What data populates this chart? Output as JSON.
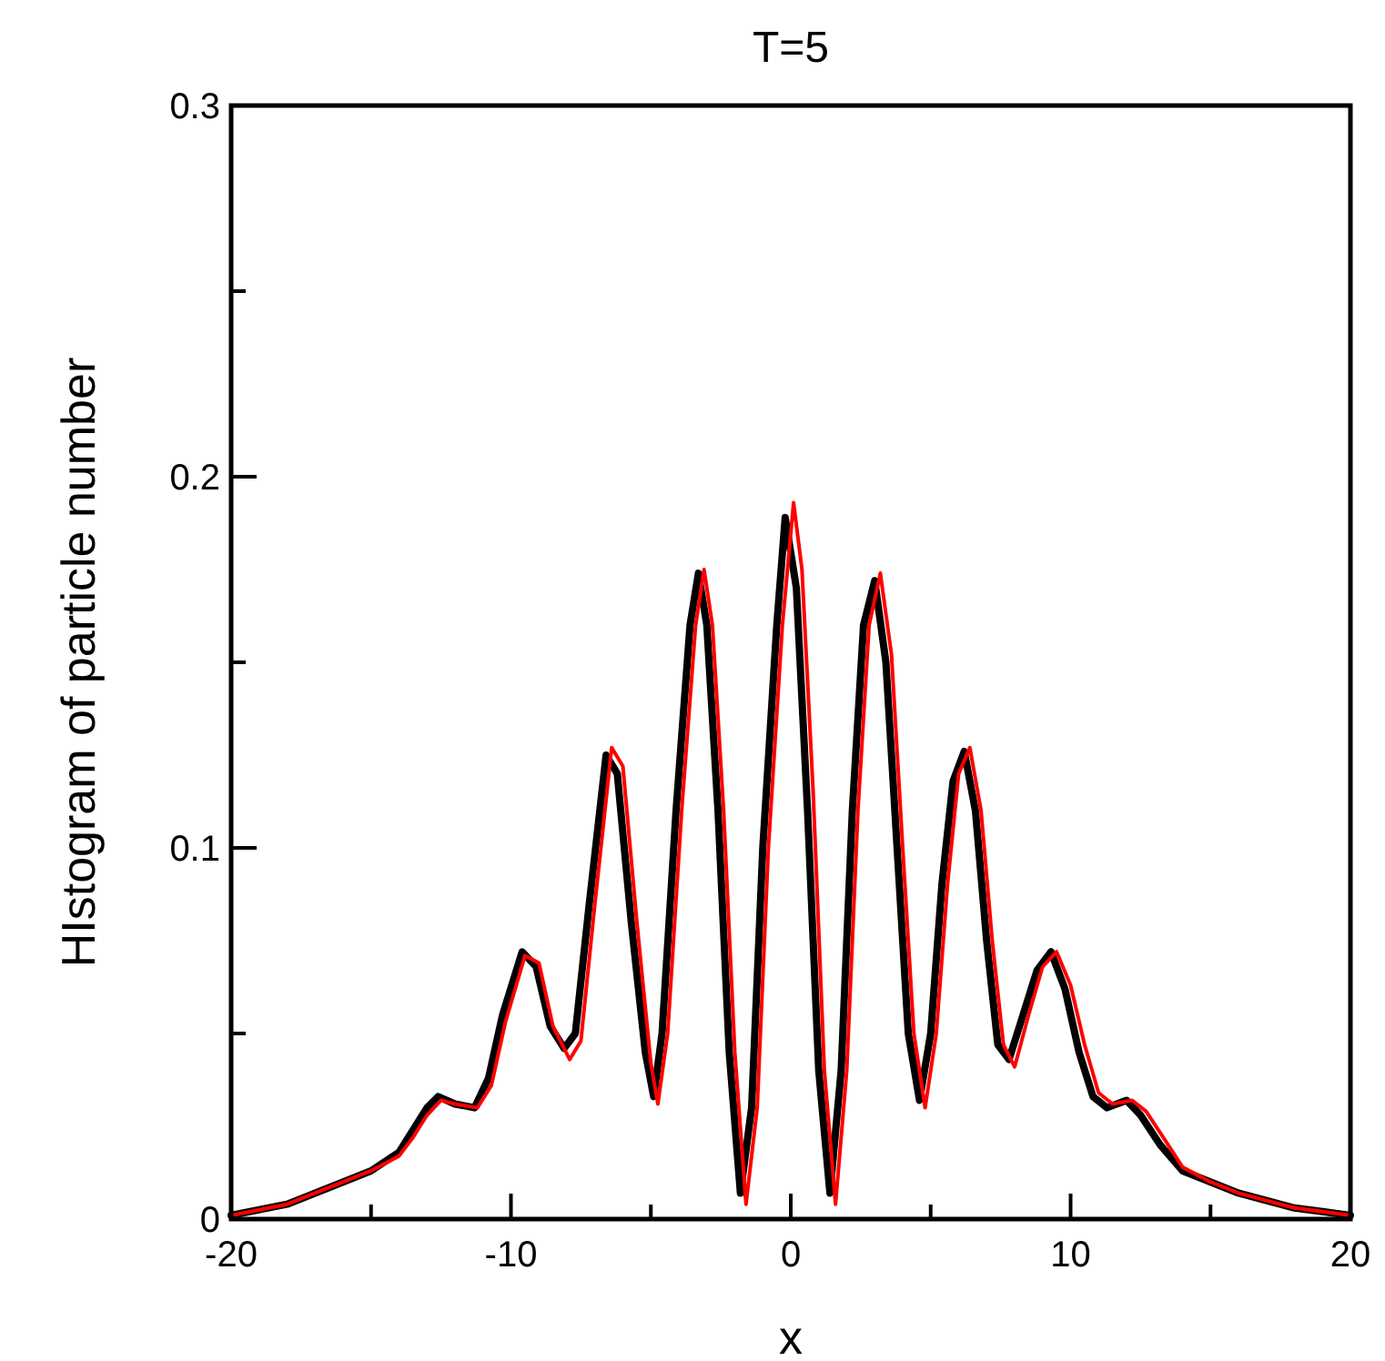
{
  "chart_data": {
    "type": "line",
    "title": "T=5",
    "xlabel": "x",
    "ylabel": "HIstogram of particle number",
    "xlim": [
      -20,
      20
    ],
    "ylim": [
      0,
      0.3
    ],
    "xticks": [
      -20,
      {
        "value": -15,
        "label": null
      },
      -10,
      {
        "value": -5,
        "label": null
      },
      0,
      {
        "value": 5,
        "label": null
      },
      10,
      {
        "value": 15,
        "label": null
      },
      20
    ],
    "yticks": [
      0,
      {
        "value": 0.05,
        "label": null
      },
      0.1,
      {
        "value": 0.15,
        "label": null
      },
      0.2,
      {
        "value": 0.25,
        "label": null
      },
      0.3
    ],
    "series": [
      {
        "color": "#000000",
        "x": [
          -20,
          -18,
          -17,
          -16,
          -15,
          -14,
          -13.5,
          -13,
          -12.6,
          -12,
          -11.3,
          -10.8,
          -10.3,
          -9.6,
          -9.1,
          -8.6,
          -8.1,
          -7.7,
          -7.2,
          -6.6,
          -6.2,
          -5.7,
          -5.2,
          -4.9,
          -4.6,
          -4.1,
          -3.6,
          -3.3,
          -3,
          -2.6,
          -2.2,
          -1.8,
          -1.4,
          -1,
          -0.5,
          -0.2,
          0.2,
          0.6,
          1,
          1.4,
          1.8,
          2.2,
          2.6,
          3,
          3.4,
          3.8,
          4.2,
          4.6,
          5,
          5.4,
          5.8,
          6.2,
          6.6,
          7,
          7.4,
          7.8,
          8.3,
          8.8,
          9.3,
          9.8,
          10.3,
          10.8,
          11.3,
          12,
          12.5,
          13.2,
          14,
          15,
          16,
          17,
          18,
          19,
          20
        ],
        "values": [
          0.001,
          0.004,
          0.007,
          0.01,
          0.013,
          0.018,
          0.024,
          0.03,
          0.033,
          0.031,
          0.03,
          0.038,
          0.055,
          0.072,
          0.068,
          0.052,
          0.046,
          0.05,
          0.085,
          0.125,
          0.12,
          0.08,
          0.045,
          0.033,
          0.05,
          0.11,
          0.16,
          0.174,
          0.16,
          0.11,
          0.045,
          0.007,
          0.03,
          0.1,
          0.16,
          0.189,
          0.17,
          0.11,
          0.04,
          0.007,
          0.04,
          0.11,
          0.16,
          0.172,
          0.15,
          0.1,
          0.05,
          0.032,
          0.05,
          0.09,
          0.118,
          0.126,
          0.11,
          0.075,
          0.047,
          0.043,
          0.055,
          0.067,
          0.072,
          0.062,
          0.045,
          0.033,
          0.03,
          0.032,
          0.028,
          0.02,
          0.013,
          0.01,
          0.007,
          0.005,
          0.003,
          0.002,
          0.001
        ]
      },
      {
        "color": "#ff0000",
        "x": [
          -20,
          -18,
          -17,
          -16,
          -15,
          -14,
          -13.5,
          -13,
          -12.5,
          -12,
          -11.2,
          -10.7,
          -10.2,
          -9.5,
          -9,
          -8.5,
          -7.9,
          -7.5,
          -7,
          -6.4,
          -6,
          -5.5,
          -5,
          -4.75,
          -4.4,
          -3.9,
          -3.4,
          -3.1,
          -2.8,
          -2.4,
          -2,
          -1.6,
          -1.2,
          -0.8,
          -0.3,
          0.1,
          0.4,
          0.8,
          1.2,
          1.6,
          2,
          2.4,
          2.8,
          3.2,
          3.6,
          4,
          4.4,
          4.8,
          5.2,
          5.6,
          6,
          6.4,
          6.8,
          7.2,
          7.6,
          8,
          8.5,
          9,
          9.5,
          10,
          10.5,
          11,
          11.5,
          12.2,
          12.7,
          13.4,
          14,
          15,
          16,
          17,
          18,
          19,
          20
        ],
        "values": [
          0.001,
          0.004,
          0.007,
          0.01,
          0.013,
          0.017,
          0.022,
          0.028,
          0.032,
          0.031,
          0.03,
          0.036,
          0.053,
          0.071,
          0.069,
          0.052,
          0.043,
          0.048,
          0.085,
          0.127,
          0.122,
          0.08,
          0.042,
          0.031,
          0.05,
          0.11,
          0.16,
          0.175,
          0.16,
          0.11,
          0.045,
          0.004,
          0.03,
          0.1,
          0.16,
          0.193,
          0.175,
          0.115,
          0.04,
          0.004,
          0.04,
          0.11,
          0.16,
          0.174,
          0.152,
          0.1,
          0.05,
          0.03,
          0.05,
          0.09,
          0.12,
          0.127,
          0.11,
          0.075,
          0.047,
          0.041,
          0.055,
          0.068,
          0.072,
          0.063,
          0.047,
          0.034,
          0.031,
          0.032,
          0.029,
          0.021,
          0.014,
          0.01,
          0.007,
          0.005,
          0.003,
          0.002,
          0.001
        ]
      }
    ]
  }
}
